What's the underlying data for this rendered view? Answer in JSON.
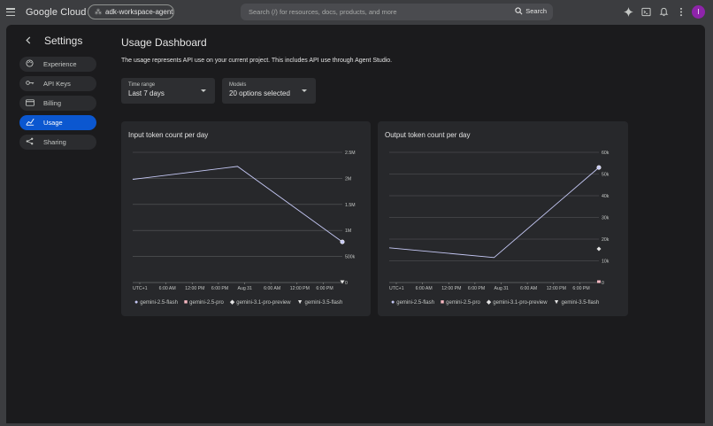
{
  "header": {
    "brand": "Google Cloud",
    "project": "adk-workspace-agent",
    "search_placeholder": "Search (/) for resources, docs, products, and more",
    "search_label": "Search",
    "avatar_initial": "I"
  },
  "sidebar": {
    "title": "Settings",
    "items": [
      {
        "label": "Experience",
        "icon": "palette-icon"
      },
      {
        "label": "API Keys",
        "icon": "key-icon"
      },
      {
        "label": "Billing",
        "icon": "credit-card-icon"
      },
      {
        "label": "Usage",
        "icon": "bar-chart-icon"
      },
      {
        "label": "Sharing",
        "icon": "share-icon"
      }
    ]
  },
  "main": {
    "title": "Usage Dashboard",
    "description": "The usage represents API use on your current project. This includes API use through Agent Studio.",
    "filters": {
      "time_range": {
        "label": "Time range",
        "value": "Last 7 days"
      },
      "models": {
        "label": "Models",
        "value": "20 options selected"
      }
    }
  },
  "colors": {
    "accent": "#0b57d0",
    "line": "#c5c8f5"
  },
  "chart_data": [
    {
      "type": "line",
      "title": "Input token count per day",
      "x_ticks": [
        "UTC+1",
        "6:00 AM",
        "12:00 PM",
        "6:00 PM",
        "Aug 31",
        "6:00 AM",
        "12:00 PM",
        "6:00 PM"
      ],
      "y_ticks": [
        "0",
        "500k",
        "1M",
        "1.5M",
        "2M",
        "2.5M"
      ],
      "ylim": [
        0,
        2500000
      ],
      "series": [
        {
          "name": "gemini-2.5-flash",
          "points": [
            {
              "x": 0,
              "y": 1980000
            },
            {
              "x": 4,
              "y": 2230000
            },
            {
              "x": 8,
              "y": 780000
            }
          ]
        },
        {
          "name": "gemini-3.5-flash",
          "points": [
            {
              "x": 8,
              "y": 0
            }
          ]
        }
      ],
      "legend": [
        "gemini-2.5-flash",
        "gemini-2.5-pro",
        "gemini-3.1-pro-preview",
        "gemini-3.5-flash"
      ]
    },
    {
      "type": "line",
      "title": "Output token count per day",
      "x_ticks": [
        "UTC+1",
        "6:00 AM",
        "12:00 PM",
        "6:00 PM",
        "Aug 31",
        "6:00 AM",
        "12:00 PM",
        "6:00 PM"
      ],
      "y_ticks": [
        "0",
        "10k",
        "20k",
        "30k",
        "40k",
        "50k",
        "60k"
      ],
      "ylim": [
        0,
        60000
      ],
      "series": [
        {
          "name": "gemini-2.5-flash",
          "points": [
            {
              "x": 0,
              "y": 16000
            },
            {
              "x": 4,
              "y": 11500
            },
            {
              "x": 8,
              "y": 53000
            }
          ]
        },
        {
          "name": "gemini-3.1-pro-preview",
          "points": [
            {
              "x": 8,
              "y": 15500
            }
          ]
        },
        {
          "name": "gemini-2.5-pro",
          "points": [
            {
              "x": 8,
              "y": 200
            }
          ]
        }
      ],
      "legend": [
        "gemini-2.5-flash",
        "gemini-2.5-pro",
        "gemini-3.1-pro-preview",
        "gemini-3.5-flash"
      ]
    }
  ]
}
